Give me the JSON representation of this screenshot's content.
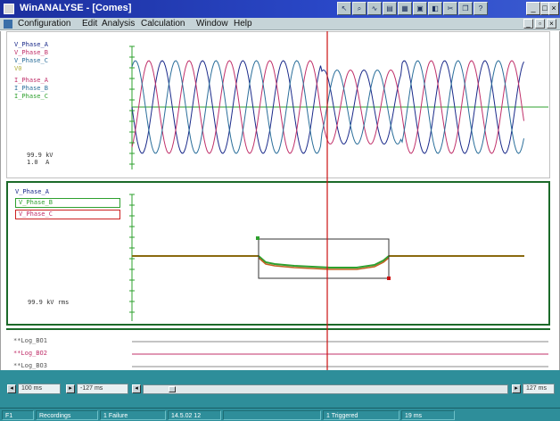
{
  "window": {
    "title": "WinANALYSE - [Comes]"
  },
  "titlebar_buttons": {
    "minimize": "_",
    "maximize": "□",
    "close": "×"
  },
  "toolbar_icons": [
    "cursor-icon",
    "zoom-icon",
    "waveform-icon",
    "chart-icon",
    "table-icon",
    "print-icon",
    "settings-icon",
    "cut-icon",
    "copy-icon",
    "help-icon"
  ],
  "menu": {
    "items": [
      "Configuration",
      "Edit",
      "Analysis",
      "Calculation",
      "Window",
      "Help"
    ]
  },
  "colors": {
    "phase_a": "#1a2a8a",
    "phase_b": "#c0306a",
    "phase_c": "#2a6e9a",
    "trace_green": "#2ea02e",
    "cursor_red": "#cc1111",
    "bar_teal": "#2e8e9a"
  },
  "pane1": {
    "channels": [
      {
        "label": "V_Phase_A",
        "color": "#1a2a8a"
      },
      {
        "label": "V_Phase_B",
        "color": "#c0306a"
      },
      {
        "label": "V_Phase_C",
        "color": "#2a6e9a"
      },
      {
        "label": "V0",
        "color": "#b0b040"
      },
      {
        "label": "I_Phase_A",
        "color": "#c0306a"
      },
      {
        "label": "I_Phase_B",
        "color": "#2a6e9a"
      },
      {
        "label": "I_Phase_C",
        "color": "#2ea02e"
      }
    ],
    "scale_line1": "99.9 kV",
    "scale_line2": "1.0  A"
  },
  "pane2": {
    "channels": [
      {
        "label": "V_Phase_A",
        "color": "#1a2a8a"
      },
      {
        "label": "V_Phase_B",
        "color": "#2ea02e"
      },
      {
        "label": "V_Phase_C",
        "color": "#c0306a"
      }
    ],
    "scale": "99.9 kV rms"
  },
  "pane3": {
    "channels": [
      {
        "label": "**Log_BO1",
        "color": "#555"
      },
      {
        "label": "**Log_BO2",
        "color": "#c0306a"
      },
      {
        "label": "**Log_BO3",
        "color": "#555"
      }
    ]
  },
  "bottombar": {
    "field_left1": "100 ms",
    "field_left2": "-127 ms",
    "field_right": "127 ms"
  },
  "statusbar": {
    "cells": [
      "F1",
      "Recordings",
      "1 Failure",
      "14.5.02 12",
      "",
      "1 Triggered",
      "19 ms"
    ]
  }
}
